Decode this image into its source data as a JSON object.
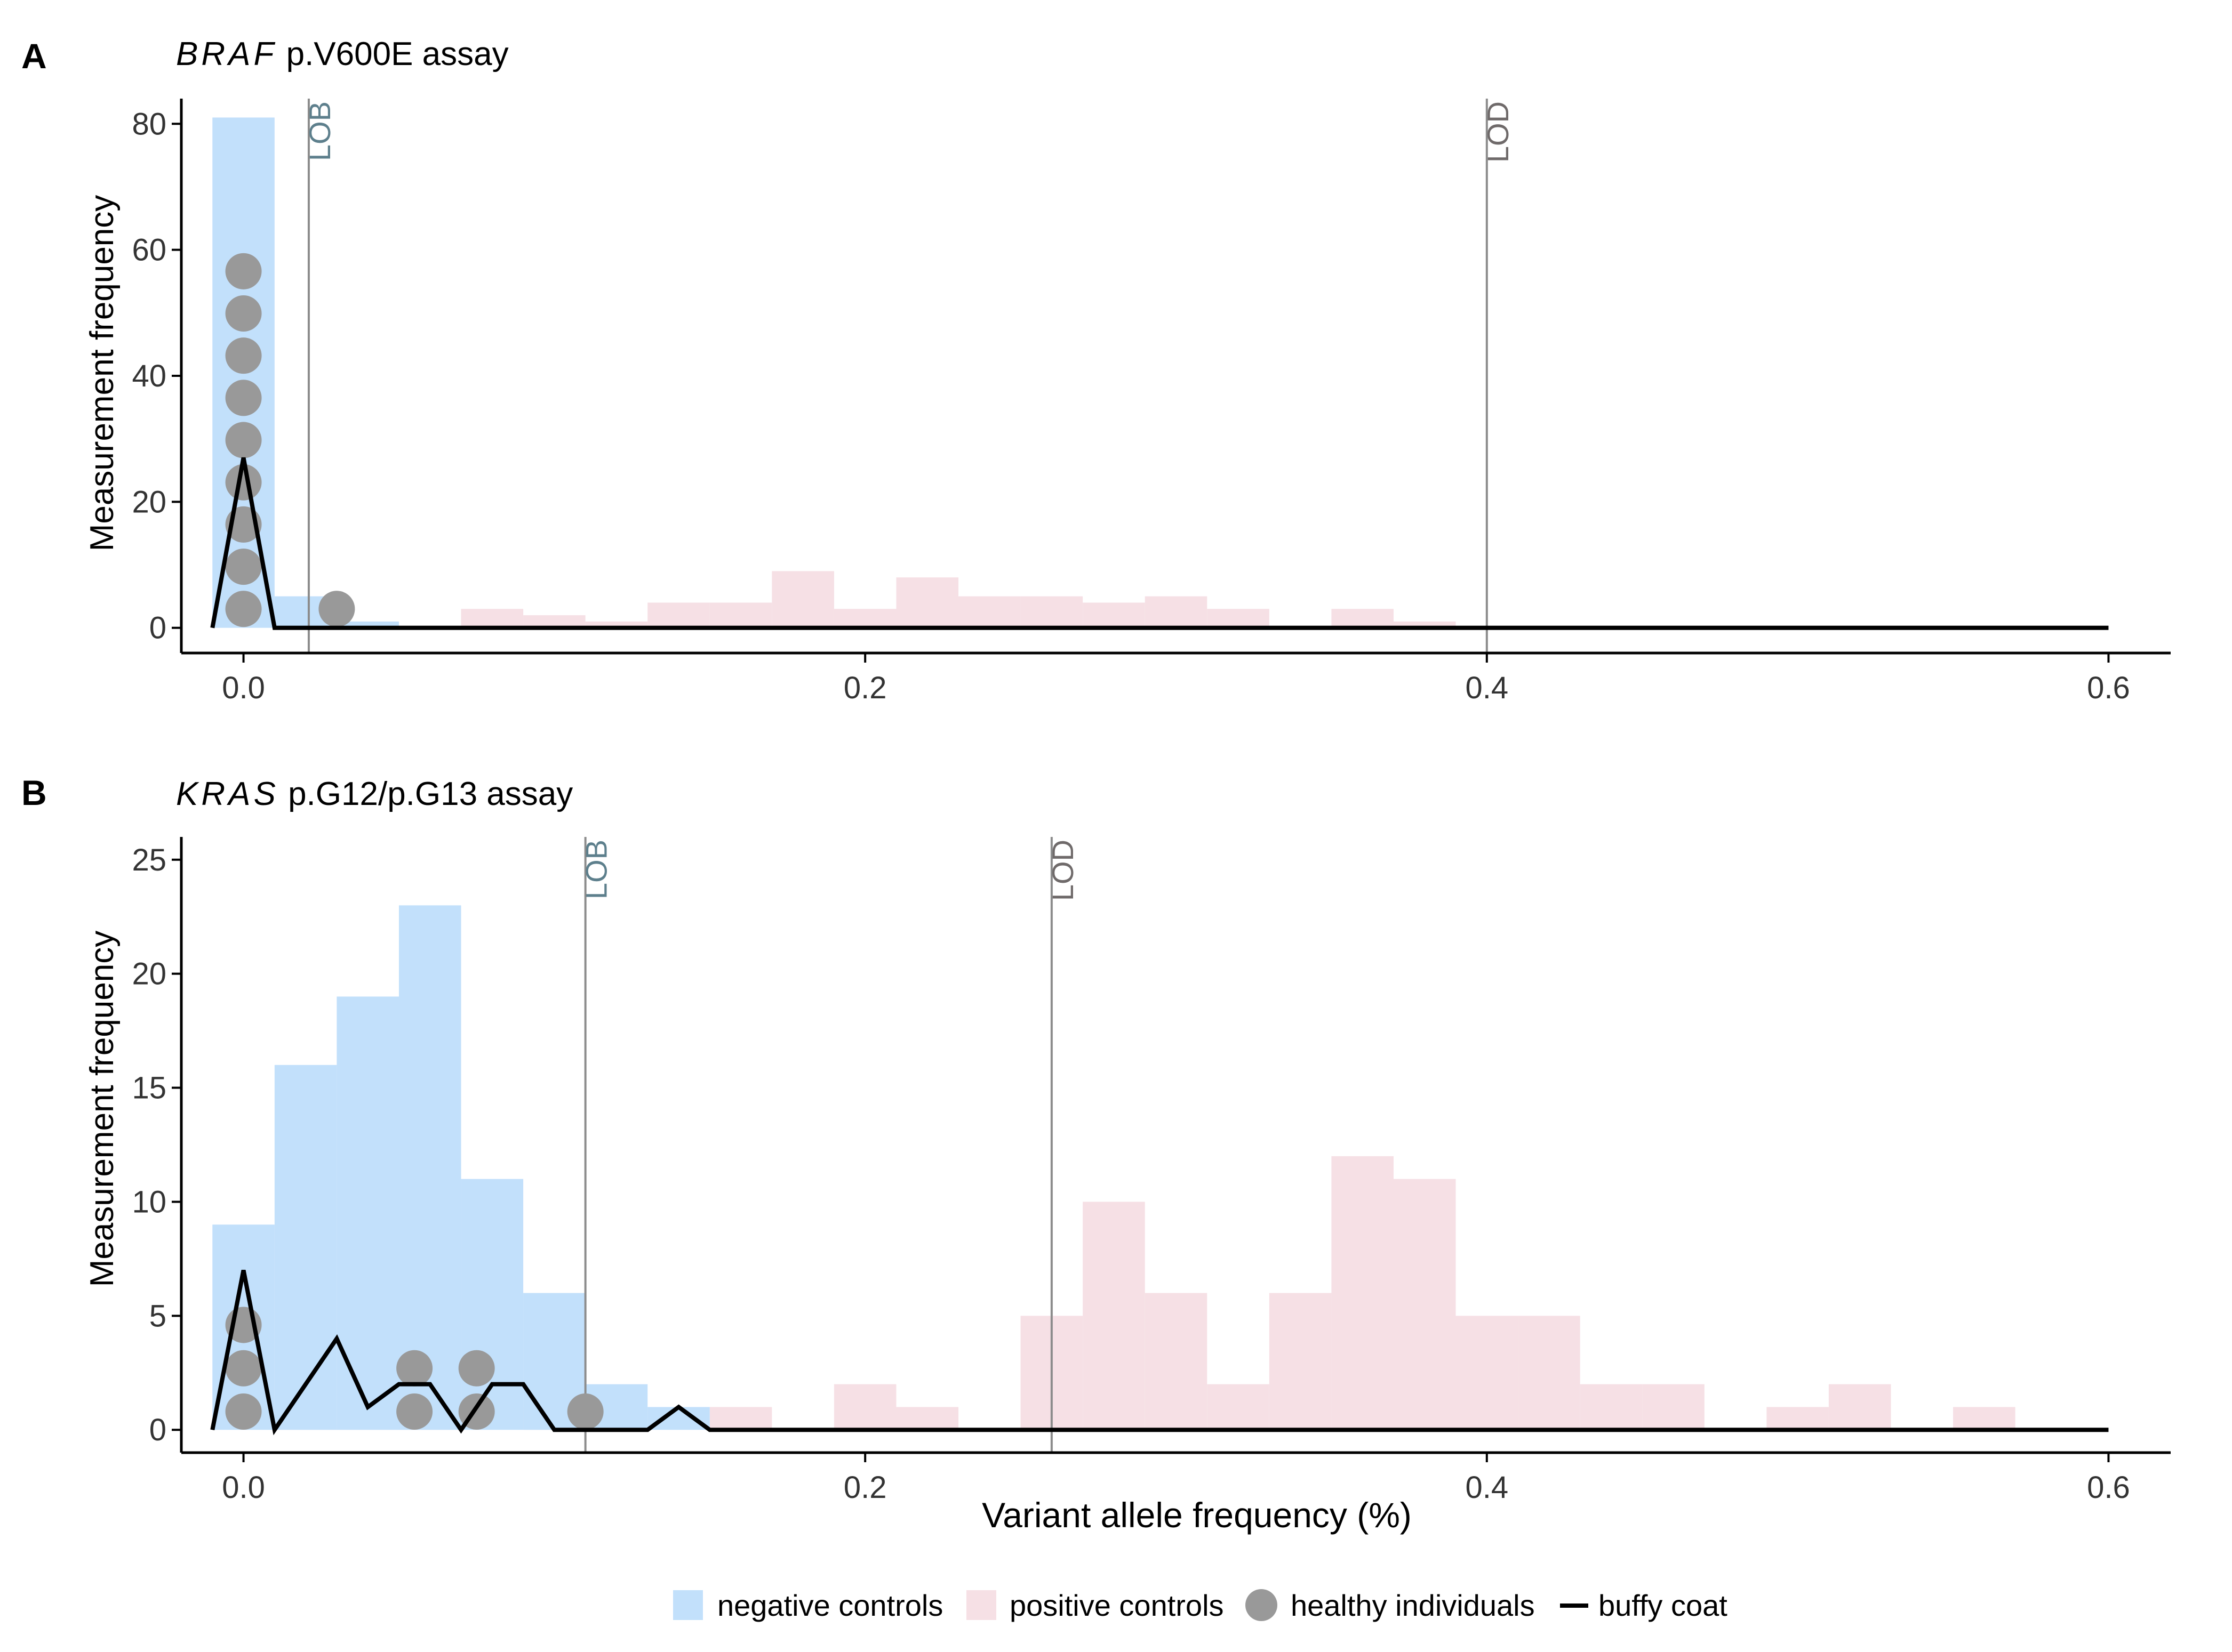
{
  "colors": {
    "negative": "#c2e0fb",
    "positive": "#f6e0e5",
    "healthy": "#999999",
    "buffy": "#000000",
    "lob_text": "#5d7f8c",
    "lod_text": "#6f6a6a",
    "ref_line": "#8c8c8c"
  },
  "legend": {
    "negative": "negative controls",
    "positive": "positive controls",
    "healthy": "healthy individuals",
    "buffy": "buffy coat"
  },
  "chart_data": [
    {
      "type": "histogram",
      "panel_label": "A",
      "title_gene": "BRAF",
      "title_rest": " p.V600E assay",
      "xlabel": "",
      "ylabel": "Measurement frequency",
      "xlim": [
        -0.02,
        0.62
      ],
      "ylim": [
        -4,
        84
      ],
      "xticks": [
        0.0,
        0.2,
        0.4,
        0.6
      ],
      "xtick_labels": [
        "0.0",
        "0.2",
        "0.4",
        "0.6"
      ],
      "yticks": [
        0,
        20,
        40,
        60,
        80
      ],
      "ytick_labels": [
        "0",
        "20",
        "40",
        "60",
        "80"
      ],
      "bin_width": 0.02,
      "negative_controls": [
        {
          "x": 0.0,
          "count": 81
        },
        {
          "x": 0.02,
          "count": 5
        },
        {
          "x": 0.04,
          "count": 1
        }
      ],
      "positive_controls": [
        {
          "x": 0.08,
          "count": 3
        },
        {
          "x": 0.1,
          "count": 2
        },
        {
          "x": 0.12,
          "count": 1
        },
        {
          "x": 0.14,
          "count": 4
        },
        {
          "x": 0.16,
          "count": 4
        },
        {
          "x": 0.18,
          "count": 9
        },
        {
          "x": 0.2,
          "count": 3
        },
        {
          "x": 0.22,
          "count": 8
        },
        {
          "x": 0.24,
          "count": 5
        },
        {
          "x": 0.26,
          "count": 5
        },
        {
          "x": 0.28,
          "count": 4
        },
        {
          "x": 0.3,
          "count": 5
        },
        {
          "x": 0.32,
          "count": 3
        },
        {
          "x": 0.36,
          "count": 3
        },
        {
          "x": 0.38,
          "count": 1
        }
      ],
      "healthy_individuals": [
        {
          "x": 0.0,
          "y": 3.0
        },
        {
          "x": 0.0,
          "y": 9.7
        },
        {
          "x": 0.0,
          "y": 16.4
        },
        {
          "x": 0.0,
          "y": 23.1
        },
        {
          "x": 0.0,
          "y": 29.8
        },
        {
          "x": 0.0,
          "y": 36.5
        },
        {
          "x": 0.0,
          "y": 43.2
        },
        {
          "x": 0.0,
          "y": 49.9
        },
        {
          "x": 0.0,
          "y": 56.6
        },
        {
          "x": 0.03,
          "y": 3.0
        }
      ],
      "buffy_coat": {
        "x": [
          -0.01,
          0.0,
          0.01,
          0.6
        ],
        "y": [
          0,
          27,
          0,
          0
        ]
      },
      "lob": {
        "x": 0.021,
        "label": "LOB"
      },
      "lod": {
        "x": 0.4,
        "label": "LOD"
      }
    },
    {
      "type": "histogram",
      "panel_label": "B",
      "title_gene": "KRAS",
      "title_rest": " p.G12/p.G13 assay",
      "xlabel": "Variant allele frequency (%)",
      "ylabel": "Measurement frequency",
      "xlim": [
        -0.02,
        0.62
      ],
      "ylim": [
        -1,
        26
      ],
      "xticks": [
        0.0,
        0.2,
        0.4,
        0.6
      ],
      "xtick_labels": [
        "0.0",
        "0.2",
        "0.4",
        "0.6"
      ],
      "yticks": [
        0,
        5,
        10,
        15,
        20,
        25
      ],
      "ytick_labels": [
        "0",
        "5",
        "10",
        "15",
        "20",
        "25"
      ],
      "bin_width": 0.02,
      "negative_controls": [
        {
          "x": 0.0,
          "count": 9
        },
        {
          "x": 0.02,
          "count": 16
        },
        {
          "x": 0.04,
          "count": 19
        },
        {
          "x": 0.06,
          "count": 23
        },
        {
          "x": 0.08,
          "count": 11
        },
        {
          "x": 0.1,
          "count": 6
        },
        {
          "x": 0.12,
          "count": 2
        },
        {
          "x": 0.14,
          "count": 1
        }
      ],
      "positive_controls": [
        {
          "x": 0.02,
          "count": 0.2
        },
        {
          "x": 0.04,
          "count": 0.2
        },
        {
          "x": 0.06,
          "count": 0.2
        },
        {
          "x": 0.1,
          "count": 1
        },
        {
          "x": 0.12,
          "count": 1
        },
        {
          "x": 0.16,
          "count": 1
        },
        {
          "x": 0.2,
          "count": 2
        },
        {
          "x": 0.22,
          "count": 1
        },
        {
          "x": 0.26,
          "count": 5
        },
        {
          "x": 0.28,
          "count": 10
        },
        {
          "x": 0.3,
          "count": 6
        },
        {
          "x": 0.32,
          "count": 2
        },
        {
          "x": 0.34,
          "count": 6
        },
        {
          "x": 0.36,
          "count": 12
        },
        {
          "x": 0.38,
          "count": 11
        },
        {
          "x": 0.4,
          "count": 5
        },
        {
          "x": 0.42,
          "count": 5
        },
        {
          "x": 0.44,
          "count": 2
        },
        {
          "x": 0.46,
          "count": 2
        },
        {
          "x": 0.5,
          "count": 1
        },
        {
          "x": 0.52,
          "count": 2
        },
        {
          "x": 0.56,
          "count": 1
        }
      ],
      "healthy_individuals": [
        {
          "x": 0.0,
          "y": 0.8
        },
        {
          "x": 0.0,
          "y": 2.7
        },
        {
          "x": 0.0,
          "y": 4.6
        },
        {
          "x": 0.055,
          "y": 0.8
        },
        {
          "x": 0.055,
          "y": 2.7
        },
        {
          "x": 0.075,
          "y": 0.8
        },
        {
          "x": 0.075,
          "y": 2.7
        },
        {
          "x": 0.11,
          "y": 0.8
        }
      ],
      "buffy_coat": {
        "x": [
          -0.01,
          0.0,
          0.01,
          0.03,
          0.04,
          0.05,
          0.06,
          0.07,
          0.08,
          0.09,
          0.1,
          0.13,
          0.14,
          0.15,
          0.6
        ],
        "y": [
          0,
          7,
          0,
          4,
          1,
          2,
          2,
          0,
          2,
          2,
          0,
          0,
          1,
          0,
          0
        ]
      },
      "lob": {
        "x": 0.11,
        "label": "LOB"
      },
      "lod": {
        "x": 0.26,
        "label": "LOD"
      }
    }
  ]
}
